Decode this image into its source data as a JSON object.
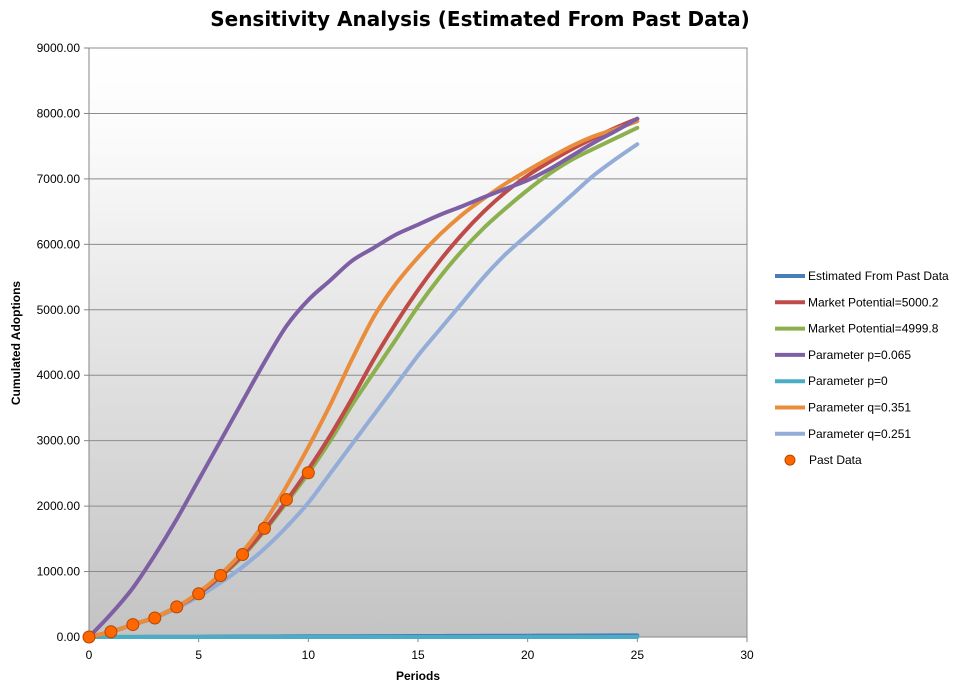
{
  "chart_data": {
    "type": "line",
    "title": "Sensitivity  Analysis (Estimated From Past Data)",
    "xlabel": "Periods",
    "ylabel": "Cumulated Adoptions",
    "xlim": [
      0,
      30
    ],
    "ylim": [
      0,
      9000
    ],
    "xticks": [
      "0",
      "5",
      "10",
      "15",
      "20",
      "25",
      "30"
    ],
    "yticks": [
      "0.00",
      "1000.00",
      "2000.00",
      "3000.00",
      "4000.00",
      "5000.00",
      "6000.00",
      "7000.00",
      "8000.00",
      "9000.00"
    ],
    "grid": "horizontal",
    "legend_position": "right",
    "x": [
      0,
      1,
      2,
      3,
      4,
      5,
      6,
      7,
      8,
      9,
      10,
      11,
      12,
      13,
      14,
      15,
      16,
      17,
      18,
      19,
      20,
      21,
      22,
      23,
      24,
      25
    ],
    "series": [
      {
        "name": "Estimated From Past Data",
        "color": "#4a7ebb",
        "values": [
          0,
          1,
          2,
          3,
          4,
          5,
          6,
          7,
          8,
          9,
          10,
          11,
          12,
          13,
          14,
          15,
          16,
          17,
          18,
          19,
          20,
          21,
          22,
          23,
          24,
          25
        ]
      },
      {
        "name": "Market Potential=5000.2",
        "color": "#be4b48",
        "values": [
          0,
          80,
          190,
          300,
          460,
          660,
          930,
          1250,
          1640,
          2080,
          2560,
          3080,
          3650,
          4250,
          4800,
          5300,
          5750,
          6150,
          6500,
          6800,
          7050,
          7260,
          7450,
          7620,
          7780,
          7920
        ]
      },
      {
        "name": "Market Potential=4999.8",
        "color": "#8bb04d",
        "values": [
          0,
          80,
          190,
          300,
          460,
          660,
          920,
          1230,
          1620,
          2050,
          2500,
          3000,
          3550,
          4050,
          4550,
          5050,
          5500,
          5900,
          6250,
          6550,
          6830,
          7080,
          7290,
          7460,
          7620,
          7780
        ]
      },
      {
        "name": "Parameter p=0.065",
        "color": "#7f5fa3",
        "values": [
          0,
          350,
          750,
          1250,
          1800,
          2400,
          3000,
          3600,
          4200,
          4750,
          5150,
          5450,
          5750,
          5950,
          6150,
          6300,
          6450,
          6580,
          6720,
          6850,
          6980,
          7150,
          7350,
          7550,
          7730,
          7920
        ]
      },
      {
        "name": "Parameter p=0",
        "color": "#4aacc5",
        "values": [
          0,
          0,
          0,
          0,
          0,
          0,
          0,
          0,
          0,
          0,
          0,
          0,
          0,
          0,
          0,
          0,
          0,
          0,
          0,
          0,
          0,
          0,
          0,
          0,
          0,
          0
        ]
      },
      {
        "name": "Parameter q=0.351",
        "color": "#e98c3b",
        "values": [
          0,
          80,
          190,
          300,
          460,
          680,
          960,
          1300,
          1750,
          2300,
          2900,
          3550,
          4250,
          4900,
          5400,
          5800,
          6150,
          6450,
          6700,
          6930,
          7130,
          7320,
          7500,
          7650,
          7760,
          7880
        ]
      },
      {
        "name": "Parameter q=0.251",
        "color": "#94acd8",
        "values": [
          0,
          80,
          190,
          290,
          440,
          620,
          830,
          1070,
          1350,
          1680,
          2050,
          2500,
          2950,
          3400,
          3850,
          4300,
          4700,
          5100,
          5500,
          5850,
          6150,
          6450,
          6750,
          7050,
          7300,
          7530
        ]
      },
      {
        "name": "Past Data",
        "color": "#ff6600",
        "marker": "circle",
        "points": [
          [
            0,
            0
          ],
          [
            1,
            80
          ],
          [
            2,
            190
          ],
          [
            3,
            290
          ],
          [
            4,
            460
          ],
          [
            5,
            660
          ],
          [
            6,
            940
          ],
          [
            7,
            1260
          ],
          [
            8,
            1660
          ],
          [
            9,
            2100
          ],
          [
            10,
            2510
          ]
        ]
      }
    ]
  }
}
